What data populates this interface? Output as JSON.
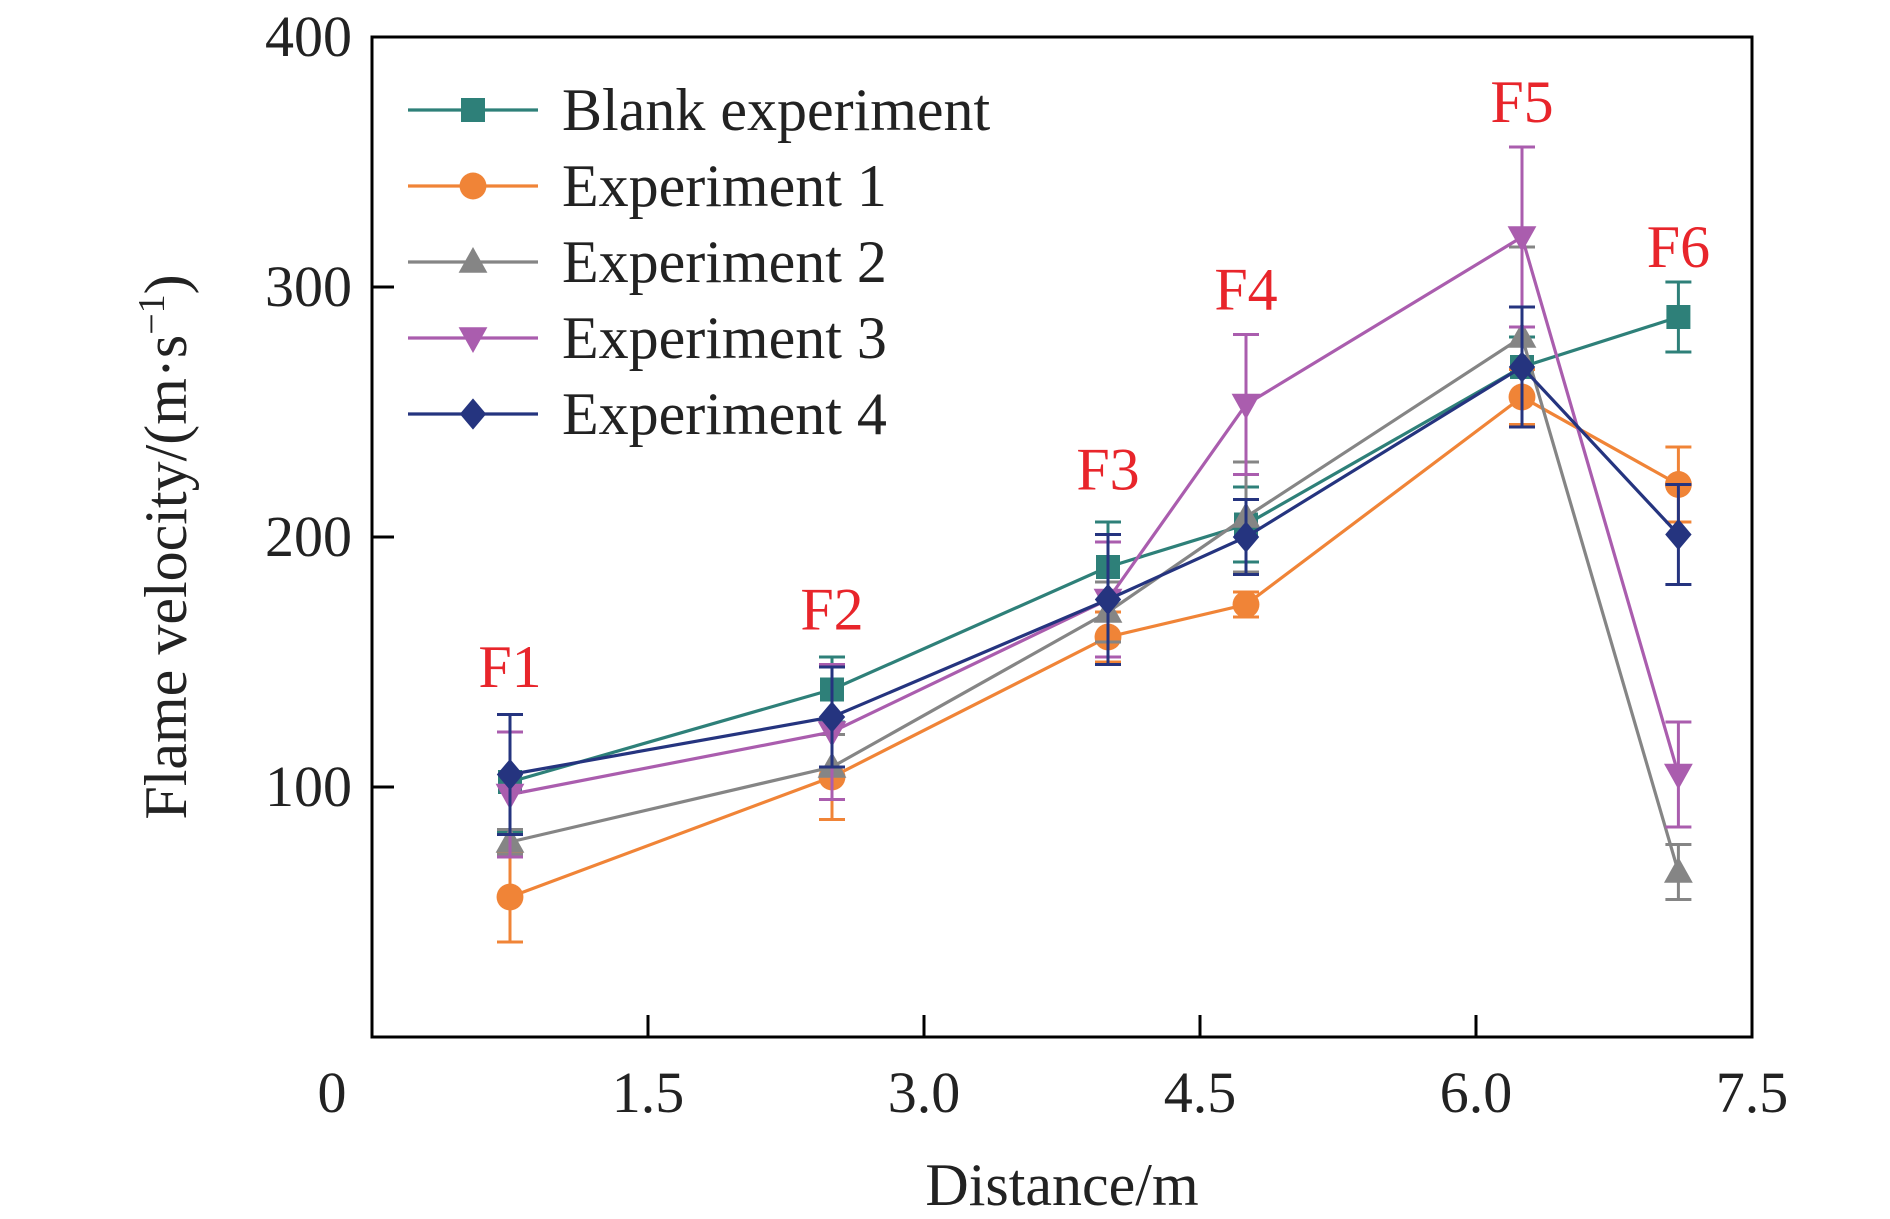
{
  "chart_data": {
    "type": "line",
    "xlabel": "Distance/m",
    "ylabel_main": "Flame velocity/(m·s",
    "ylabel_sup": "−1",
    "ylabel_close": ")",
    "xlim": [
      0,
      7.5
    ],
    "ylim": [
      0,
      400
    ],
    "grid": false,
    "legend_position": "top-left",
    "x_ticks": [
      1.5,
      3.0,
      4.5,
      6.0,
      7.5
    ],
    "x_tick_labels": [
      "1.5",
      "3.0",
      "4.5",
      "6.0",
      "7.5"
    ],
    "x_origin_label": "0",
    "y_ticks": [
      100,
      200,
      300,
      400
    ],
    "y_tick_labels": [
      "100",
      "200",
      "300",
      "400"
    ],
    "x": [
      0.75,
      2.5,
      4.0,
      4.75,
      6.25,
      7.1
    ],
    "series": [
      {
        "name": "Blank experiment",
        "color": "#2e8079",
        "marker": "square",
        "values": [
          102,
          139,
          188,
          205,
          268,
          288
        ],
        "errors": [
          20,
          13,
          18,
          15,
          12,
          14
        ]
      },
      {
        "name": "Experiment 1",
        "color": "#f08437",
        "marker": "circle",
        "values": [
          56,
          104,
          160,
          173,
          256,
          221
        ],
        "errors": [
          18,
          17,
          10,
          5,
          11,
          15
        ]
      },
      {
        "name": "Experiment 2",
        "color": "#858585",
        "marker": "triangle-up",
        "values": [
          78,
          108,
          170,
          208,
          280,
          66
        ],
        "errors": [
          5,
          13,
          12,
          22,
          36,
          11
        ]
      },
      {
        "name": "Experiment 3",
        "color": "#aa5dae",
        "marker": "triangle-down",
        "values": [
          97,
          122,
          175,
          253,
          320,
          105
        ],
        "errors": [
          25,
          27,
          23,
          28,
          36,
          21
        ]
      },
      {
        "name": "Experiment 4",
        "color": "#25347f",
        "marker": "diamond",
        "values": [
          105,
          128,
          175,
          200,
          268,
          201
        ],
        "errors": [
          24,
          20,
          26,
          15,
          24,
          20
        ]
      }
    ],
    "annotations": [
      {
        "text": "F1",
        "x": 0.75,
        "y": 140
      },
      {
        "text": "F2",
        "x": 2.5,
        "y": 163
      },
      {
        "text": "F3",
        "x": 4.0,
        "y": 219
      },
      {
        "text": "F4",
        "x": 4.75,
        "y": 291
      },
      {
        "text": "F5",
        "x": 6.25,
        "y": 366
      },
      {
        "text": "F6",
        "x": 7.1,
        "y": 308
      }
    ],
    "annotation_color": "#e8252b"
  }
}
